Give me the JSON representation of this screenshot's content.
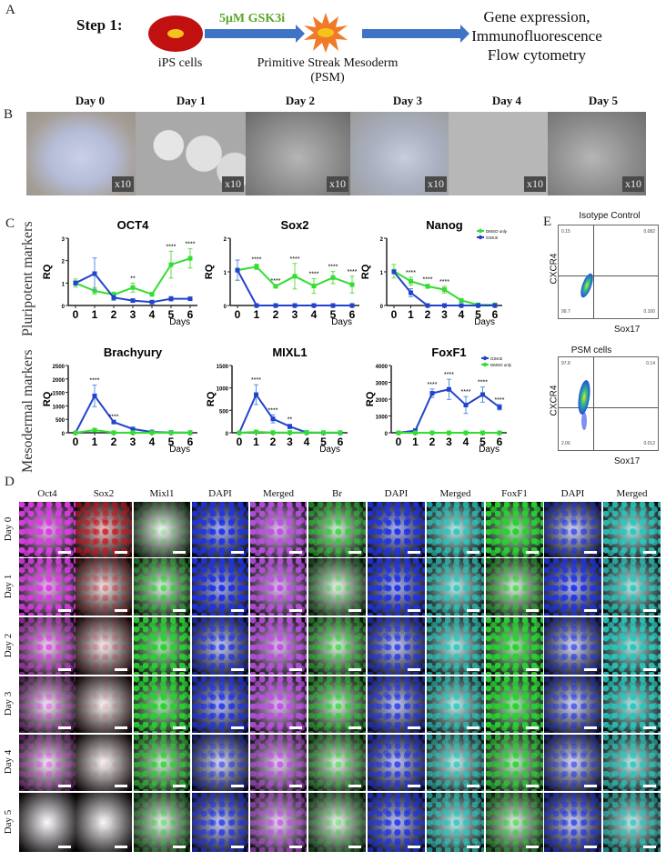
{
  "panelA": {
    "letter": "A",
    "step_label": "Step 1:",
    "treatment": "5μM GSK3i",
    "start_label": "iPS cells",
    "middle_label_line1": "Primitive Streak Mesoderm",
    "middle_label_line2": "(PSM)",
    "outcomes": [
      "Gene expression,",
      "Immunofluorescence",
      "Flow cytometry"
    ],
    "colors": {
      "arrow": "#3f73c6",
      "ips_cell": "#c01010",
      "psm_cell": "#f07a2a",
      "nucleus": "#f6c21c",
      "treatment_text": "#5aa628"
    }
  },
  "panelB": {
    "letter": "B",
    "days": [
      "Day 0",
      "Day 1",
      "Day 2",
      "Day 3",
      "Day 4",
      "Day 5"
    ],
    "magnification": "x10"
  },
  "panelC": {
    "letter": "C",
    "row_labels": [
      "Pluripotent markers",
      "Mesodermal markers"
    ],
    "y_axis_label": "RQ",
    "x_axis_label": "Days",
    "legend_top": [
      "DMSO only",
      "GSK3i"
    ],
    "legend_foxf1": [
      "GSK3i",
      "DMSO only"
    ]
  },
  "chart_data": [
    {
      "type": "line",
      "title": "OCT4",
      "xlabel": "Days",
      "ylabel": "RQ",
      "ylim": [
        0,
        3
      ],
      "x": [
        0,
        1,
        2,
        3,
        4,
        5,
        6
      ],
      "yticks": [
        0,
        1,
        2,
        3
      ],
      "series": [
        {
          "name": "DMSO only",
          "color": "#33dd33",
          "values": [
            1.0,
            0.65,
            0.48,
            0.8,
            0.5,
            1.82,
            2.1
          ],
          "errors": [
            0.18,
            0.15,
            0.12,
            0.2,
            0.08,
            0.6,
            0.43
          ]
        },
        {
          "name": "GSK3i",
          "color": "#2244cc",
          "values": [
            1.0,
            1.42,
            0.35,
            0.22,
            0.15,
            0.3,
            0.3
          ],
          "errors": [
            0.1,
            0.7,
            0.12,
            0.05,
            0.03,
            0.1,
            0.05
          ]
        }
      ],
      "annotations": [
        {
          "x": 3,
          "text": "**"
        },
        {
          "x": 5,
          "text": "****"
        },
        {
          "x": 6,
          "text": "****"
        }
      ]
    },
    {
      "type": "line",
      "title": "Sox2",
      "xlabel": "Days",
      "ylabel": "RQ",
      "ylim": [
        0,
        2
      ],
      "x": [
        0,
        1,
        2,
        3,
        4,
        5,
        6
      ],
      "yticks": [
        0,
        1,
        2
      ],
      "series": [
        {
          "name": "DMSO only",
          "color": "#33dd33",
          "values": [
            1.05,
            1.15,
            0.57,
            0.87,
            0.58,
            0.83,
            0.62
          ],
          "errors": [
            0.3,
            0.08,
            0.03,
            0.38,
            0.22,
            0.18,
            0.25
          ]
        },
        {
          "name": "GSK3i",
          "color": "#2244cc",
          "values": [
            1.05,
            0,
            0,
            0,
            0,
            0,
            0
          ],
          "errors": [
            0.3,
            0,
            0,
            0,
            0,
            0,
            0
          ]
        }
      ],
      "annotations": [
        {
          "x": 1,
          "text": "****"
        },
        {
          "x": 2,
          "text": "****"
        },
        {
          "x": 3,
          "text": "****"
        },
        {
          "x": 4,
          "text": "****"
        },
        {
          "x": 5,
          "text": "****"
        },
        {
          "x": 6,
          "text": "****"
        }
      ]
    },
    {
      "type": "line",
      "title": "Nanog",
      "xlabel": "Days",
      "ylabel": "RQ",
      "ylim": [
        0,
        2
      ],
      "x": [
        0,
        1,
        2,
        3,
        4,
        5,
        6
      ],
      "yticks": [
        0,
        1,
        2
      ],
      "series": [
        {
          "name": "DMSO only",
          "color": "#33dd33",
          "values": [
            1.02,
            0.72,
            0.57,
            0.47,
            0.15,
            0.02,
            0.02
          ],
          "errors": [
            0.2,
            0.12,
            0.06,
            0.1,
            0.03,
            0.01,
            0.01
          ]
        },
        {
          "name": "GSK3i",
          "color": "#2244cc",
          "values": [
            1.0,
            0.38,
            0,
            0,
            0,
            0,
            0
          ],
          "errors": [
            0.05,
            0.12,
            0,
            0,
            0,
            0,
            0
          ]
        }
      ],
      "annotations": [
        {
          "x": 1,
          "text": "****"
        },
        {
          "x": 2,
          "text": "****"
        },
        {
          "x": 3,
          "text": "****"
        }
      ],
      "legend": [
        "DMSO only",
        "GSK3i"
      ]
    },
    {
      "type": "line",
      "title": "Brachyury",
      "xlabel": "Days",
      "ylabel": "RQ",
      "ylim": [
        0,
        2500
      ],
      "x": [
        0,
        1,
        2,
        3,
        4,
        5,
        6
      ],
      "yticks": [
        0,
        500,
        1000,
        1500,
        2000,
        2500
      ],
      "series": [
        {
          "name": "GSK3i",
          "color": "#2244cc",
          "values": [
            0,
            1370,
            400,
            140,
            30,
            10,
            5
          ],
          "errors": [
            0,
            400,
            30,
            20,
            5,
            2,
            2
          ]
        },
        {
          "name": "DMSO only",
          "color": "#33dd33",
          "values": [
            0,
            100,
            5,
            5,
            5,
            5,
            5
          ],
          "errors": [
            0,
            20,
            0,
            0,
            0,
            0,
            0
          ]
        }
      ],
      "annotations": [
        {
          "x": 1,
          "text": "****"
        },
        {
          "x": 2,
          "text": "****"
        }
      ]
    },
    {
      "type": "line",
      "title": "MIXL1",
      "xlabel": "Days",
      "ylabel": "RQ",
      "ylim": [
        0,
        1500
      ],
      "x": [
        0,
        1,
        2,
        3,
        4,
        5,
        6
      ],
      "yticks": [
        0,
        500,
        1000,
        1500
      ],
      "series": [
        {
          "name": "GSK3i",
          "color": "#2244cc",
          "values": [
            0,
            850,
            310,
            140,
            5,
            0,
            0
          ],
          "errors": [
            0,
            220,
            90,
            50,
            2,
            0,
            0
          ]
        },
        {
          "name": "DMSO only",
          "color": "#33dd33",
          "values": [
            0,
            20,
            5,
            5,
            5,
            5,
            5
          ],
          "errors": [
            0,
            5,
            0,
            0,
            0,
            0,
            0
          ]
        }
      ],
      "annotations": [
        {
          "x": 1,
          "text": "****"
        },
        {
          "x": 2,
          "text": "****"
        },
        {
          "x": 3,
          "text": "**"
        }
      ]
    },
    {
      "type": "line",
      "title": "FoxF1",
      "xlabel": "Days",
      "ylabel": "RQ",
      "ylim": [
        0,
        4000
      ],
      "x": [
        0,
        1,
        2,
        3,
        4,
        5,
        6
      ],
      "yticks": [
        0,
        1000,
        2000,
        3000,
        4000
      ],
      "series": [
        {
          "name": "GSK3i",
          "color": "#2244cc",
          "values": [
            0,
            130,
            2350,
            2580,
            1650,
            2270,
            1520
          ],
          "errors": [
            0,
            30,
            250,
            600,
            500,
            450,
            160
          ]
        },
        {
          "name": "DMSO only",
          "color": "#33dd33",
          "values": [
            0,
            0,
            0,
            0,
            0,
            0,
            0
          ],
          "errors": [
            0,
            0,
            0,
            0,
            0,
            0,
            0
          ]
        }
      ],
      "annotations": [
        {
          "x": 2,
          "text": "****"
        },
        {
          "x": 3,
          "text": "****"
        },
        {
          "x": 4,
          "text": "****"
        },
        {
          "x": 5,
          "text": "****"
        },
        {
          "x": 6,
          "text": "****"
        }
      ],
      "legend": [
        "GSK3i",
        "DMSO only"
      ]
    }
  ],
  "panelD": {
    "letter": "D",
    "column_headers": [
      "Oct4",
      "Sox2",
      "Mixl1",
      "DAPI",
      "Merged",
      "Br",
      "DAPI",
      "Merged",
      "FoxF1",
      "DAPI",
      "Merged"
    ],
    "row_labels": [
      "Day 0",
      "Day 1",
      "Day 2",
      "Day 3",
      "Day 4",
      "Day 5"
    ]
  },
  "panelE": {
    "letter": "E",
    "plots": [
      {
        "title": "Isotype Control",
        "ylabel": "CXCR4",
        "xlabel": "Sox17",
        "quadrants": {
          "ul": "0.15",
          "ur": "0.082",
          "ll": "99.7",
          "lr": "0.100"
        }
      },
      {
        "title": "PSM cells",
        "ylabel": "CXCR4",
        "xlabel": "Sox17",
        "quadrants": {
          "ul": "97.8",
          "ur": "0.14",
          "ll": "2.06",
          "lr": "0.012"
        }
      }
    ]
  }
}
